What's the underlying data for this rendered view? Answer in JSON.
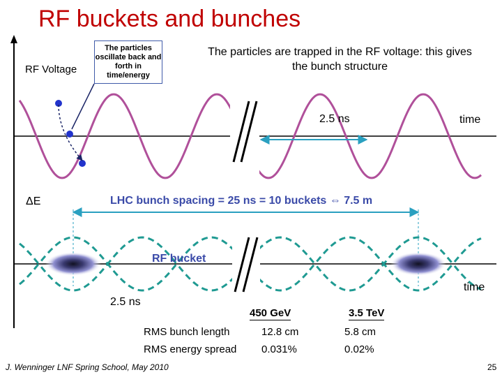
{
  "title": "RF buckets and bunches",
  "labels": {
    "rf_voltage": "RF Voltage",
    "callout": "The particles oscillate back and forth in time/energy",
    "trapped": "The particles are trapped in the RF voltage: this gives the bunch structure",
    "period_top": "2.5 ns",
    "time_top": "time",
    "delta_e": "ΔE",
    "spacing": "LHC bunch spacing = 25 ns = 10 buckets ⇔ 7.5 m",
    "rf_bucket": "RF bucket",
    "time_bottom": "time",
    "period_bottom": "2.5 ns"
  },
  "table": {
    "headers": [
      "450 GeV",
      "3.5 TeV"
    ],
    "rows": [
      {
        "label": "RMS bunch length",
        "values": [
          "12.8 cm",
          "5.8 cm"
        ]
      },
      {
        "label": "RMS energy spread",
        "values": [
          "0.031%",
          "0.02%"
        ]
      }
    ]
  },
  "footer": "J. Wenninger LNF Spring School, May 2010",
  "page_number": "25",
  "colors": {
    "title": "#c00000",
    "wave": "#b0509a",
    "bucket": "#1f9a92",
    "arrow": "#2aa0c0",
    "text_blue": "#3a4aa8",
    "particles": "#2233cc"
  }
}
